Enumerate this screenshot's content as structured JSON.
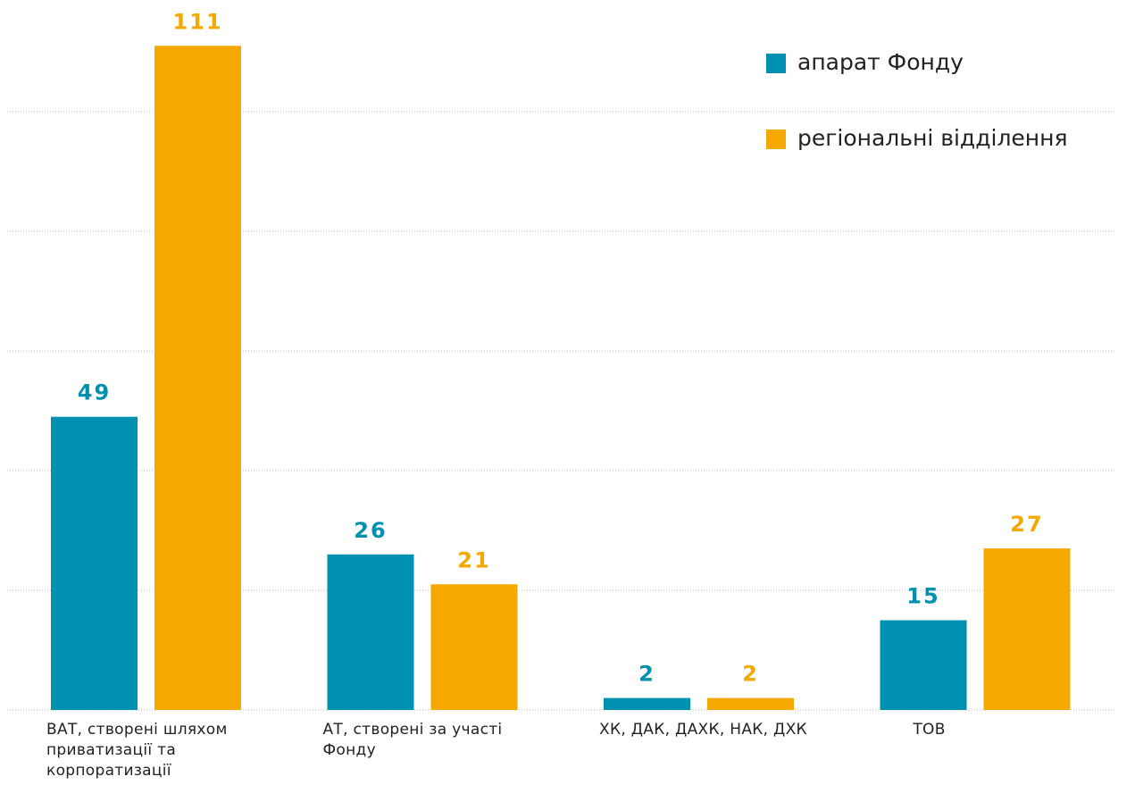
{
  "chart_data": {
    "type": "bar",
    "categories": [
      "ВАТ, створені шляхом приватизації та корпоратизації",
      "АТ, створені за участі Фонду",
      "ХК, ДАК, ДАХК, НАК, ДХК",
      "ТОВ"
    ],
    "series": [
      {
        "name": "апарат Фонду",
        "color": "#0090b0",
        "values": [
          49,
          26,
          2,
          15
        ]
      },
      {
        "name": "регіональні відділення",
        "color": "#f5a800",
        "values": [
          111,
          21,
          2,
          27
        ]
      }
    ],
    "ylim": [
      0,
      120
    ],
    "yticks": [
      0,
      20,
      40,
      60,
      80,
      100
    ],
    "grid": true,
    "legend": "top-right"
  }
}
